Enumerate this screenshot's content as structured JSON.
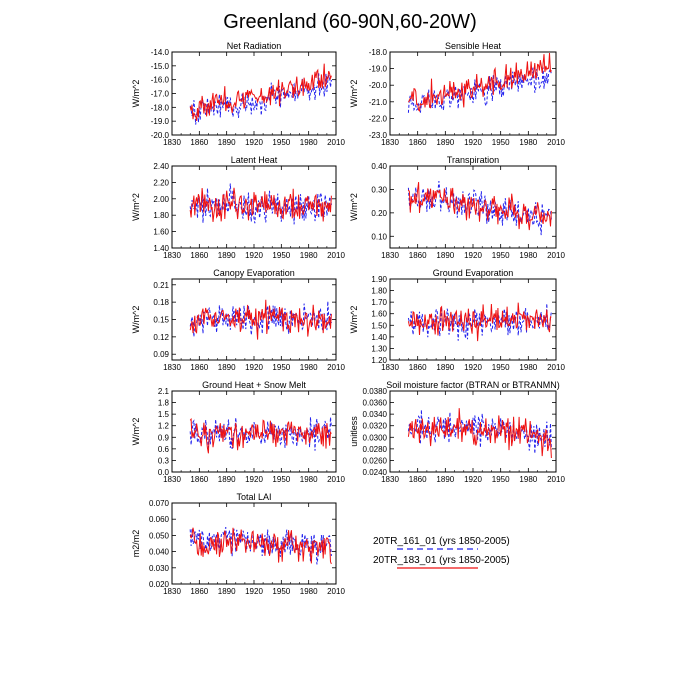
{
  "figure": {
    "title": "Greenland (60-90N,60-20W)"
  },
  "legend": {
    "entries": [
      {
        "label": "20TR_161_01 (yrs 1850-2005)",
        "color": "#2222ee",
        "style": "dashed"
      },
      {
        "label": "20TR_183_01 (yrs 1850-2005)",
        "color": "#ee1111",
        "style": "solid"
      }
    ]
  },
  "chart_data": [
    {
      "type": "line",
      "title": "Net Radiation",
      "ylabel": "W/m^2",
      "xlim": [
        1830,
        2010
      ],
      "xticks": [
        1830,
        1860,
        1890,
        1920,
        1950,
        1980,
        2010
      ],
      "ylim": [
        -20.0,
        -14.0
      ],
      "yticks": [
        "-20.0",
        "-19.0",
        "-18.0",
        "-17.0",
        "-16.0",
        "-15.0",
        "-14.0"
      ],
      "series": [
        {
          "name": "20TR_161_01 (yrs 1850-2005)",
          "x": [
            1850,
            1860,
            1870,
            1880,
            1890,
            1900,
            1910,
            1920,
            1930,
            1940,
            1950,
            1960,
            1970,
            1980,
            1990,
            2000,
            2005
          ],
          "y": [
            -18.2,
            -18.3,
            -18.0,
            -17.9,
            -17.8,
            -18.0,
            -17.7,
            -17.6,
            -17.4,
            -17.3,
            -17.1,
            -17.0,
            -16.9,
            -16.7,
            -16.6,
            -16.4,
            -16.3
          ]
        },
        {
          "name": "20TR_183_01 (yrs 1850-2005)",
          "x": [
            1850,
            1860,
            1870,
            1880,
            1890,
            1900,
            1910,
            1920,
            1930,
            1940,
            1950,
            1960,
            1970,
            1980,
            1990,
            2000,
            2005
          ],
          "y": [
            -18.0,
            -18.1,
            -17.8,
            -17.6,
            -17.5,
            -17.6,
            -17.4,
            -17.2,
            -17.1,
            -17.0,
            -16.8,
            -16.6,
            -16.5,
            -16.2,
            -16.0,
            -15.8,
            -15.6
          ]
        }
      ]
    },
    {
      "type": "line",
      "title": "Sensible Heat",
      "ylabel": "W/m^2",
      "xlim": [
        1830,
        2010
      ],
      "xticks": [
        1830,
        1860,
        1890,
        1920,
        1950,
        1980,
        2010
      ],
      "ylim": [
        -23.0,
        -18.0
      ],
      "yticks": [
        "-23.0",
        "-22.0",
        "-21.0",
        "-20.0",
        "-19.0",
        "-18.0"
      ],
      "series": [
        {
          "name": "20TR_161_01 (yrs 1850-2005)",
          "x": [
            1850,
            1860,
            1870,
            1880,
            1890,
            1900,
            1910,
            1920,
            1930,
            1940,
            1950,
            1960,
            1970,
            1980,
            1990,
            2000,
            2005
          ],
          "y": [
            -21.0,
            -21.0,
            -20.9,
            -20.8,
            -20.7,
            -20.7,
            -20.6,
            -20.5,
            -20.3,
            -20.2,
            -20.1,
            -20.0,
            -19.9,
            -19.8,
            -19.7,
            -19.6,
            -19.5
          ]
        },
        {
          "name": "20TR_183_01 (yrs 1850-2005)",
          "x": [
            1850,
            1860,
            1870,
            1880,
            1890,
            1900,
            1910,
            1920,
            1930,
            1940,
            1950,
            1960,
            1970,
            1980,
            1990,
            2000,
            2005
          ],
          "y": [
            -20.9,
            -20.8,
            -20.7,
            -20.6,
            -20.5,
            -20.4,
            -20.3,
            -20.2,
            -20.0,
            -19.9,
            -19.8,
            -19.6,
            -19.5,
            -19.3,
            -19.1,
            -19.0,
            -18.9
          ]
        }
      ]
    },
    {
      "type": "line",
      "title": "Latent Heat",
      "ylabel": "W/m^2",
      "xlim": [
        1830,
        2010
      ],
      "xticks": [
        1830,
        1860,
        1890,
        1920,
        1950,
        1980,
        2010
      ],
      "ylim": [
        1.4,
        2.4
      ],
      "yticks": [
        "1.40",
        "1.60",
        "1.80",
        "2.00",
        "2.20",
        "2.40"
      ],
      "series": [
        {
          "name": "20TR_161_01 (yrs 1850-2005)",
          "x": [
            1850,
            1860,
            1870,
            1880,
            1890,
            1900,
            1910,
            1920,
            1930,
            1940,
            1950,
            1960,
            1970,
            1980,
            1990,
            2000,
            2005
          ],
          "y": [
            1.92,
            1.9,
            1.92,
            1.91,
            1.93,
            1.92,
            1.91,
            1.9,
            1.92,
            1.93,
            1.91,
            1.9,
            1.91,
            1.92,
            1.9,
            1.91,
            1.92
          ]
        },
        {
          "name": "20TR_183_01 (yrs 1850-2005)",
          "x": [
            1850,
            1860,
            1870,
            1880,
            1890,
            1900,
            1910,
            1920,
            1930,
            1940,
            1950,
            1960,
            1970,
            1980,
            1990,
            2000,
            2005
          ],
          "y": [
            1.93,
            1.91,
            1.92,
            1.92,
            1.94,
            1.92,
            1.92,
            1.91,
            1.92,
            1.94,
            1.92,
            1.91,
            1.92,
            1.93,
            1.91,
            1.91,
            1.93
          ]
        }
      ]
    },
    {
      "type": "line",
      "title": "Transpiration",
      "ylabel": "W/m^2",
      "xlim": [
        1830,
        2010
      ],
      "xticks": [
        1830,
        1860,
        1890,
        1920,
        1950,
        1980,
        2010
      ],
      "ylim": [
        0.05,
        0.4
      ],
      "yticks": [
        "0.10",
        "0.20",
        "0.30",
        "0.40"
      ],
      "series": [
        {
          "name": "20TR_161_01 (yrs 1850-2005)",
          "x": [
            1850,
            1860,
            1870,
            1880,
            1890,
            1900,
            1910,
            1920,
            1930,
            1940,
            1950,
            1960,
            1970,
            1980,
            1990,
            2000,
            2005
          ],
          "y": [
            0.26,
            0.26,
            0.25,
            0.25,
            0.25,
            0.24,
            0.24,
            0.23,
            0.23,
            0.22,
            0.22,
            0.21,
            0.2,
            0.19,
            0.19,
            0.18,
            0.18
          ]
        },
        {
          "name": "20TR_183_01 (yrs 1850-2005)",
          "x": [
            1850,
            1860,
            1870,
            1880,
            1890,
            1900,
            1910,
            1920,
            1930,
            1940,
            1950,
            1960,
            1970,
            1980,
            1990,
            2000,
            2005
          ],
          "y": [
            0.27,
            0.26,
            0.26,
            0.26,
            0.26,
            0.25,
            0.24,
            0.24,
            0.23,
            0.23,
            0.22,
            0.21,
            0.2,
            0.2,
            0.19,
            0.18,
            0.18
          ]
        }
      ]
    },
    {
      "type": "line",
      "title": "Canopy Evaporation",
      "ylabel": "W/m^2",
      "xlim": [
        1830,
        2010
      ],
      "xticks": [
        1830,
        1860,
        1890,
        1920,
        1950,
        1980,
        2010
      ],
      "ylim": [
        0.08,
        0.22
      ],
      "yticks": [
        "0.09",
        "0.12",
        "0.15",
        "0.18",
        "0.21"
      ],
      "series": [
        {
          "name": "20TR_161_01 (yrs 1850-2005)",
          "x": [
            1850,
            1860,
            1870,
            1880,
            1890,
            1900,
            1910,
            1920,
            1930,
            1940,
            1950,
            1960,
            1970,
            1980,
            1990,
            2000,
            2005
          ],
          "y": [
            0.15,
            0.149,
            0.151,
            0.15,
            0.152,
            0.151,
            0.15,
            0.15,
            0.151,
            0.152,
            0.15,
            0.149,
            0.15,
            0.151,
            0.149,
            0.15,
            0.151
          ]
        },
        {
          "name": "20TR_183_01 (yrs 1850-2005)",
          "x": [
            1850,
            1860,
            1870,
            1880,
            1890,
            1900,
            1910,
            1920,
            1930,
            1940,
            1950,
            1960,
            1970,
            1980,
            1990,
            2000,
            2005
          ],
          "y": [
            0.151,
            0.15,
            0.152,
            0.151,
            0.153,
            0.152,
            0.151,
            0.151,
            0.152,
            0.153,
            0.151,
            0.15,
            0.151,
            0.152,
            0.15,
            0.151,
            0.152
          ]
        }
      ]
    },
    {
      "type": "line",
      "title": "Ground Evaporation",
      "ylabel": "W/m^2",
      "xlim": [
        1830,
        2010
      ],
      "xticks": [
        1830,
        1860,
        1890,
        1920,
        1950,
        1980,
        2010
      ],
      "ylim": [
        1.2,
        1.9
      ],
      "yticks": [
        "1.20",
        "1.30",
        "1.40",
        "1.50",
        "1.60",
        "1.70",
        "1.80",
        "1.90"
      ],
      "series": [
        {
          "name": "20TR_161_01 (yrs 1850-2005)",
          "x": [
            1850,
            1860,
            1870,
            1880,
            1890,
            1900,
            1910,
            1920,
            1930,
            1940,
            1950,
            1960,
            1970,
            1980,
            1990,
            2000,
            2005
          ],
          "y": [
            1.52,
            1.52,
            1.53,
            1.52,
            1.53,
            1.53,
            1.52,
            1.52,
            1.53,
            1.54,
            1.53,
            1.52,
            1.52,
            1.53,
            1.52,
            1.53,
            1.54
          ]
        },
        {
          "name": "20TR_183_01 (yrs 1850-2005)",
          "x": [
            1850,
            1860,
            1870,
            1880,
            1890,
            1900,
            1910,
            1920,
            1930,
            1940,
            1950,
            1960,
            1970,
            1980,
            1990,
            2000,
            2005
          ],
          "y": [
            1.53,
            1.53,
            1.54,
            1.53,
            1.54,
            1.54,
            1.53,
            1.53,
            1.54,
            1.55,
            1.54,
            1.53,
            1.53,
            1.54,
            1.53,
            1.54,
            1.55
          ]
        }
      ]
    },
    {
      "type": "line",
      "title": "Ground Heat + Snow Melt",
      "ylabel": "W/m^2",
      "xlim": [
        1830,
        2010
      ],
      "xticks": [
        1830,
        1860,
        1890,
        1920,
        1950,
        1980,
        2010
      ],
      "ylim": [
        0.0,
        2.1
      ],
      "yticks": [
        "0.0",
        "0.3",
        "0.6",
        "0.9",
        "1.2",
        "1.5",
        "1.8",
        "2.1"
      ],
      "series": [
        {
          "name": "20TR_161_01 (yrs 1850-2005)",
          "x": [
            1850,
            1860,
            1870,
            1880,
            1890,
            1900,
            1910,
            1920,
            1930,
            1940,
            1950,
            1960,
            1970,
            1980,
            1990,
            2000,
            2005
          ],
          "y": [
            1.0,
            1.0,
            0.99,
            1.0,
            0.99,
            1.0,
            0.99,
            0.98,
            0.99,
            0.98,
            0.99,
            0.98,
            0.98,
            0.99,
            0.98,
            0.99,
            0.98
          ]
        },
        {
          "name": "20TR_183_01 (yrs 1850-2005)",
          "x": [
            1850,
            1860,
            1870,
            1880,
            1890,
            1900,
            1910,
            1920,
            1930,
            1940,
            1950,
            1960,
            1970,
            1980,
            1990,
            2000,
            2005
          ],
          "y": [
            1.02,
            1.01,
            1.0,
            1.01,
            1.0,
            1.01,
            1.0,
            0.99,
            1.0,
            0.99,
            1.0,
            0.99,
            0.99,
            1.0,
            0.99,
            1.0,
            0.99
          ]
        }
      ]
    },
    {
      "type": "line",
      "title": "Soil moisture factor (BTRAN or BTRANMN)",
      "ylabel": "unitless",
      "xlim": [
        1830,
        2010
      ],
      "xticks": [
        1830,
        1860,
        1890,
        1920,
        1950,
        1980,
        2010
      ],
      "ylim": [
        0.024,
        0.038
      ],
      "yticks": [
        "0.0240",
        "0.0260",
        "0.0280",
        "0.0300",
        "0.0320",
        "0.0340",
        "0.0360",
        "0.0380"
      ],
      "series": [
        {
          "name": "20TR_161_01 (yrs 1850-2005)",
          "x": [
            1850,
            1860,
            1870,
            1880,
            1890,
            1900,
            1910,
            1920,
            1930,
            1940,
            1950,
            1960,
            1970,
            1980,
            1990,
            2000,
            2005
          ],
          "y": [
            0.0312,
            0.0313,
            0.0315,
            0.0316,
            0.0318,
            0.0317,
            0.0316,
            0.0315,
            0.0314,
            0.0314,
            0.0313,
            0.0311,
            0.0309,
            0.0305,
            0.03,
            0.0298,
            0.0297
          ]
        },
        {
          "name": "20TR_183_01 (yrs 1850-2005)",
          "x": [
            1850,
            1860,
            1870,
            1880,
            1890,
            1900,
            1910,
            1920,
            1930,
            1940,
            1950,
            1960,
            1970,
            1980,
            1990,
            2000,
            2005
          ],
          "y": [
            0.031,
            0.0312,
            0.0314,
            0.0315,
            0.0317,
            0.0316,
            0.0315,
            0.0314,
            0.0313,
            0.0313,
            0.0312,
            0.0309,
            0.0306,
            0.0301,
            0.0296,
            0.0294,
            0.0293
          ]
        }
      ]
    },
    {
      "type": "line",
      "title": "Total LAI",
      "ylabel": "m2/m2",
      "xlim": [
        1830,
        2010
      ],
      "xticks": [
        1830,
        1860,
        1890,
        1920,
        1950,
        1980,
        2010
      ],
      "ylim": [
        0.02,
        0.07
      ],
      "yticks": [
        "0.020",
        "0.030",
        "0.040",
        "0.050",
        "0.060",
        "0.070"
      ],
      "series": [
        {
          "name": "20TR_161_01 (yrs 1850-2005)",
          "x": [
            1850,
            1860,
            1870,
            1880,
            1890,
            1900,
            1910,
            1920,
            1930,
            1940,
            1950,
            1960,
            1970,
            1980,
            1990,
            2000,
            2005
          ],
          "y": [
            0.047,
            0.047,
            0.047,
            0.048,
            0.049,
            0.048,
            0.047,
            0.046,
            0.046,
            0.046,
            0.045,
            0.045,
            0.045,
            0.044,
            0.044,
            0.044,
            0.045
          ]
        },
        {
          "name": "20TR_183_01 (yrs 1850-2005)",
          "x": [
            1850,
            1860,
            1870,
            1880,
            1890,
            1900,
            1910,
            1920,
            1930,
            1940,
            1950,
            1960,
            1970,
            1980,
            1990,
            2000,
            2005
          ],
          "y": [
            0.046,
            0.045,
            0.046,
            0.047,
            0.048,
            0.047,
            0.046,
            0.045,
            0.045,
            0.045,
            0.044,
            0.044,
            0.044,
            0.043,
            0.043,
            0.043,
            0.044
          ]
        }
      ]
    }
  ]
}
